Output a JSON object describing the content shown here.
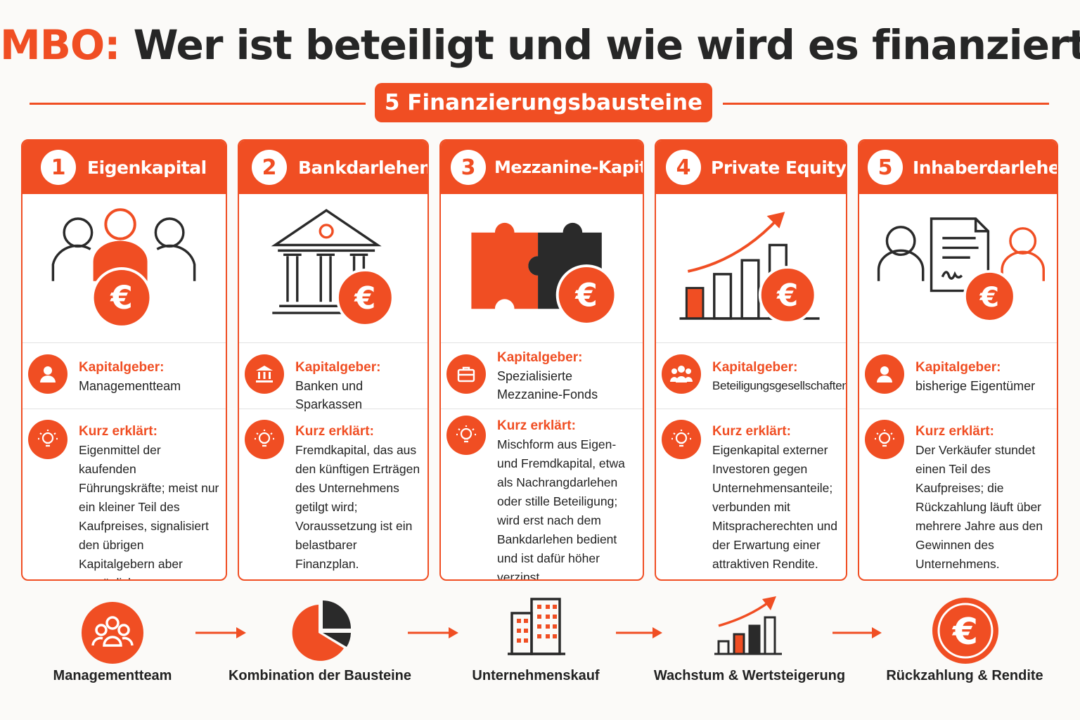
{
  "title": {
    "accent": "MBO:",
    "rest": "Wer ist beteiligt und wie wird es finanziert?"
  },
  "subtitle": "5 Finanzierungsbausteine",
  "colors": {
    "accent": "#f04e23",
    "dark": "#2a2a2a",
    "background": "#fbfaf8"
  },
  "cards": [
    {
      "number": "1",
      "title": "Eigenkapital",
      "illustration": "team-euro-icon",
      "investor_label": "Kapitalgeber:",
      "investor_icon": "person-icon",
      "investor": "Managementteam",
      "explain_label": "Kurz erklärt:",
      "explain_icon": "lightbulb-icon",
      "explain": "Eigenmittel der kaufenden Führungskräfte; meist nur ein kleiner Teil des Kaufpreises, signalisiert den übrigen Kapitalgebern aber persönliches Commitment."
    },
    {
      "number": "2",
      "title": "Bankdarlehen",
      "illustration": "bank-euro-icon",
      "investor_label": "Kapitalgeber:",
      "investor_icon": "bank-icon",
      "investor": "Banken und Sparkassen",
      "explain_label": "Kurz erklärt:",
      "explain_icon": "lightbulb-icon",
      "explain": "Fremdkapital, das aus den künftigen Erträgen des Unternehmens getilgt wird; Voraussetzung ist ein belastbarer Finanzplan."
    },
    {
      "number": "3",
      "title": "Mezzanine-Kapital",
      "illustration": "puzzle-euro-icon",
      "investor_label": "Kapitalgeber:",
      "investor_icon": "briefcase-icon",
      "investor": "Spezialisierte Mezzanine-Fonds",
      "explain_label": "Kurz erklärt:",
      "explain_icon": "lightbulb-icon",
      "explain": "Mischform aus Eigen- und Fremdkapital, etwa als Nachrangdarlehen oder stille Beteiligung; wird erst nach dem Bankdarlehen bedient und ist dafür höher verzinst."
    },
    {
      "number": "4",
      "title": "Private Equity",
      "illustration": "growth-chart-euro-icon",
      "investor_label": "Kapitalgeber:",
      "investor_icon": "group-icon",
      "investor": "Beteiligungsgesellschaften",
      "explain_label": "Kurz erklärt:",
      "explain_icon": "lightbulb-icon",
      "explain": "Eigenkapital externer Investoren gegen Unternehmensanteile; verbunden mit Mitspracherechten und der Erwartung einer attraktiven Rendite."
    },
    {
      "number": "5",
      "title": "Inhaberdarlehen",
      "illustration": "contract-euro-icon",
      "investor_label": "Kapitalgeber:",
      "investor_icon": "person-icon",
      "investor": "bisherige Eigentümer",
      "explain_label": "Kurz erklärt:",
      "explain_icon": "lightbulb-icon",
      "explain": "Der Verkäufer stundet einen Teil des Kaufpreises; die Rückzahlung läuft über mehrere Jahre aus den Gewinnen des Unternehmens."
    }
  ],
  "flow": [
    {
      "label": "Managementteam",
      "icon": "team-icon"
    },
    {
      "label": "Kombination der Bausteine",
      "icon": "pie-chart-icon"
    },
    {
      "label": "Unternehmenskauf",
      "icon": "buildings-icon"
    },
    {
      "label": "Wachstum & Wertsteigerung",
      "icon": "growth-chart-icon"
    },
    {
      "label": "Rückzahlung & Rendite",
      "icon": "euro-icon"
    }
  ]
}
